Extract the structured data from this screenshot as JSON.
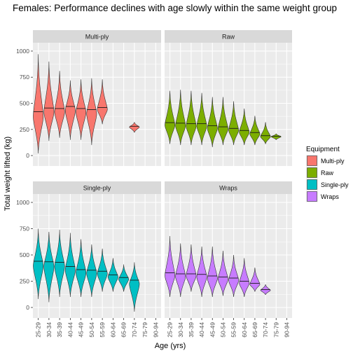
{
  "chart_data": {
    "type": "violin",
    "title": "Females: Performance declines with age slowly within the same weight group",
    "xlabel": "Age (yrs)",
    "ylabel": "Total weight lifted (kg)",
    "ylim": [
      -100,
      1080
    ],
    "yticks": [
      0,
      250,
      500,
      750,
      1000
    ],
    "categories": [
      "25-29",
      "30-34",
      "35-39",
      "40-44",
      "45-49",
      "50-54",
      "55-59",
      "60-64",
      "65-69",
      "70-74",
      "75-79",
      "90-94"
    ],
    "grid": true,
    "legend": {
      "title": "Equipment",
      "position": "right",
      "entries": [
        {
          "label": "Multi-ply",
          "color": "#F8766D"
        },
        {
          "label": "Raw",
          "color": "#7CAE00"
        },
        {
          "label": "Single-ply",
          "color": "#00BFC4"
        },
        {
          "label": "Wraps",
          "color": "#C77CFF"
        }
      ]
    },
    "panels": [
      {
        "name": "Multi-ply",
        "color": "#F8766D",
        "violins": [
          {
            "age": "25-29",
            "min": 20,
            "max": 970,
            "median": 420
          },
          {
            "age": "30-34",
            "min": 140,
            "max": 900,
            "median": 455
          },
          {
            "age": "35-39",
            "min": 170,
            "max": 810,
            "median": 450
          },
          {
            "age": "40-44",
            "min": 150,
            "max": 720,
            "median": 470
          },
          {
            "age": "45-49",
            "min": 150,
            "max": 730,
            "median": 450
          },
          {
            "age": "50-54",
            "min": 100,
            "max": 740,
            "median": 440
          },
          {
            "age": "55-59",
            "min": 300,
            "max": 730,
            "median": 460
          },
          {
            "age": "70-74",
            "min": 220,
            "max": 320,
            "median": 280
          }
        ]
      },
      {
        "name": "Raw",
        "color": "#7CAE00",
        "violins": [
          {
            "age": "25-29",
            "min": 110,
            "max": 620,
            "median": 315
          },
          {
            "age": "30-34",
            "min": 100,
            "max": 630,
            "median": 310
          },
          {
            "age": "35-39",
            "min": 100,
            "max": 620,
            "median": 305
          },
          {
            "age": "40-44",
            "min": 100,
            "max": 600,
            "median": 305
          },
          {
            "age": "45-49",
            "min": 80,
            "max": 560,
            "median": 285
          },
          {
            "age": "50-54",
            "min": 100,
            "max": 560,
            "median": 275
          },
          {
            "age": "55-59",
            "min": 100,
            "max": 520,
            "median": 260
          },
          {
            "age": "60-64",
            "min": 100,
            "max": 450,
            "median": 240
          },
          {
            "age": "65-69",
            "min": 100,
            "max": 380,
            "median": 220
          },
          {
            "age": "70-74",
            "min": 110,
            "max": 320,
            "median": 190
          },
          {
            "age": "75-79",
            "min": 150,
            "max": 210,
            "median": 185
          }
        ]
      },
      {
        "name": "Single-ply",
        "color": "#00BFC4",
        "violins": [
          {
            "age": "25-29",
            "min": 80,
            "max": 750,
            "median": 440
          },
          {
            "age": "30-34",
            "min": 50,
            "max": 720,
            "median": 435
          },
          {
            "age": "35-39",
            "min": 100,
            "max": 740,
            "median": 430
          },
          {
            "age": "40-44",
            "min": 100,
            "max": 710,
            "median": 390
          },
          {
            "age": "45-49",
            "min": 100,
            "max": 650,
            "median": 360
          },
          {
            "age": "50-54",
            "min": 100,
            "max": 600,
            "median": 355
          },
          {
            "age": "55-59",
            "min": 150,
            "max": 560,
            "median": 345
          },
          {
            "age": "60-64",
            "min": 150,
            "max": 470,
            "median": 310
          },
          {
            "age": "65-69",
            "min": 150,
            "max": 410,
            "median": 285
          },
          {
            "age": "70-74",
            "min": -40,
            "max": 430,
            "median": 260
          }
        ]
      },
      {
        "name": "Wraps",
        "color": "#C77CFF",
        "violins": [
          {
            "age": "25-29",
            "min": 100,
            "max": 680,
            "median": 330
          },
          {
            "age": "30-34",
            "min": 100,
            "max": 610,
            "median": 320
          },
          {
            "age": "35-39",
            "min": 150,
            "max": 600,
            "median": 320
          },
          {
            "age": "40-44",
            "min": 100,
            "max": 580,
            "median": 315
          },
          {
            "age": "45-49",
            "min": 100,
            "max": 580,
            "median": 300
          },
          {
            "age": "50-54",
            "min": 110,
            "max": 540,
            "median": 290
          },
          {
            "age": "55-59",
            "min": 100,
            "max": 500,
            "median": 280
          },
          {
            "age": "60-64",
            "min": 100,
            "max": 470,
            "median": 250
          },
          {
            "age": "65-69",
            "min": 150,
            "max": 380,
            "median": 230
          },
          {
            "age": "70-74",
            "min": 120,
            "max": 220,
            "median": 170
          }
        ]
      }
    ]
  }
}
